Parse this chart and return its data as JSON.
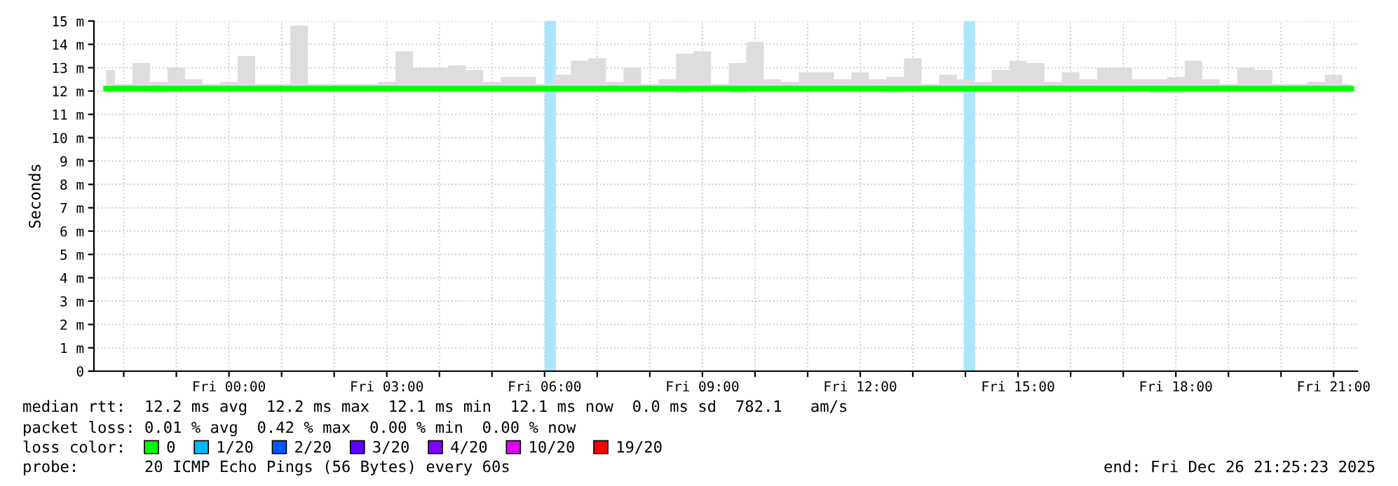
{
  "chart_data": {
    "type": "step",
    "ylabel": "Seconds",
    "legend_title": "loss color:",
    "legend": "bottom",
    "grid": true,
    "xlim": [
      "2025-12-25T21:26",
      "2025-12-26T21:27"
    ],
    "xticks": [
      {
        "value": "2025-12-25T22:00",
        "label": null
      },
      {
        "value": "2025-12-25T23:00",
        "label": null
      },
      {
        "value": "2025-12-26T00:00",
        "label": "Fri 00:00"
      },
      {
        "value": "2025-12-26T01:00",
        "label": null
      },
      {
        "value": "2025-12-26T02:00",
        "label": null
      },
      {
        "value": "2025-12-26T03:00",
        "label": "Fri 03:00"
      },
      {
        "value": "2025-12-26T04:00",
        "label": null
      },
      {
        "value": "2025-12-26T05:00",
        "label": null
      },
      {
        "value": "2025-12-26T06:00",
        "label": "Fri 06:00"
      },
      {
        "value": "2025-12-26T07:00",
        "label": null
      },
      {
        "value": "2025-12-26T08:00",
        "label": null
      },
      {
        "value": "2025-12-26T09:00",
        "label": "Fri 09:00"
      },
      {
        "value": "2025-12-26T10:00",
        "label": null
      },
      {
        "value": "2025-12-26T11:00",
        "label": null
      },
      {
        "value": "2025-12-26T12:00",
        "label": "Fri 12:00"
      },
      {
        "value": "2025-12-26T13:00",
        "label": null
      },
      {
        "value": "2025-12-26T14:00",
        "label": null
      },
      {
        "value": "2025-12-26T15:00",
        "label": "Fri 15:00"
      },
      {
        "value": "2025-12-26T16:00",
        "label": null
      },
      {
        "value": "2025-12-26T17:00",
        "label": null
      },
      {
        "value": "2025-12-26T18:00",
        "label": "Fri 18:00"
      },
      {
        "value": "2025-12-26T19:00",
        "label": null
      },
      {
        "value": "2025-12-26T20:00",
        "label": null
      },
      {
        "value": "2025-12-26T21:00",
        "label": "Fri 21:00"
      }
    ],
    "ylim": [
      0,
      15
    ],
    "yticks": [
      0,
      {
        "value": 1,
        "label": "1 m"
      },
      {
        "value": 2,
        "label": "2 m"
      },
      {
        "value": 3,
        "label": "3 m"
      },
      {
        "value": 4,
        "label": "4 m"
      },
      {
        "value": 5,
        "label": "5 m"
      },
      {
        "value": 6,
        "label": "6 m"
      },
      {
        "value": 7,
        "label": "7 m"
      },
      {
        "value": 8,
        "label": "8 m"
      },
      {
        "value": 9,
        "label": "9 m"
      },
      {
        "value": 10,
        "label": "10 m"
      },
      {
        "value": 11,
        "label": "11 m"
      },
      {
        "value": 12,
        "label": "12 m"
      },
      {
        "value": 13,
        "label": "13 m"
      },
      {
        "value": 14,
        "label": "14 m"
      },
      {
        "value": 15,
        "label": "15 m"
      }
    ],
    "x": [
      "2025-12-25T21:40",
      "2025-12-25T22:00",
      "2025-12-25T22:20",
      "2025-12-25T22:40",
      "2025-12-25T23:00",
      "2025-12-25T23:20",
      "2025-12-25T23:40",
      "2025-12-26T00:00",
      "2025-12-26T00:20",
      "2025-12-26T00:40",
      "2025-12-26T01:00",
      "2025-12-26T01:20",
      "2025-12-26T01:40",
      "2025-12-26T02:00",
      "2025-12-26T02:20",
      "2025-12-26T02:40",
      "2025-12-26T03:00",
      "2025-12-26T03:20",
      "2025-12-26T03:40",
      "2025-12-26T04:00",
      "2025-12-26T04:20",
      "2025-12-26T04:40",
      "2025-12-26T05:00",
      "2025-12-26T05:20",
      "2025-12-26T05:40",
      "2025-12-26T06:00",
      "2025-12-26T06:20",
      "2025-12-26T06:40",
      "2025-12-26T07:00",
      "2025-12-26T07:20",
      "2025-12-26T07:40",
      "2025-12-26T08:00",
      "2025-12-26T08:20",
      "2025-12-26T08:40",
      "2025-12-26T09:00",
      "2025-12-26T09:20",
      "2025-12-26T09:40",
      "2025-12-26T10:00",
      "2025-12-26T10:20",
      "2025-12-26T10:40",
      "2025-12-26T11:00",
      "2025-12-26T11:20",
      "2025-12-26T11:40",
      "2025-12-26T12:00",
      "2025-12-26T12:20",
      "2025-12-26T12:40",
      "2025-12-26T13:00",
      "2025-12-26T13:20",
      "2025-12-26T13:40",
      "2025-12-26T14:00",
      "2025-12-26T14:20",
      "2025-12-26T14:40",
      "2025-12-26T15:00",
      "2025-12-26T15:20",
      "2025-12-26T15:40",
      "2025-12-26T16:00",
      "2025-12-26T16:20",
      "2025-12-26T16:40",
      "2025-12-26T17:00",
      "2025-12-26T17:20",
      "2025-12-26T17:40",
      "2025-12-26T18:00",
      "2025-12-26T18:20",
      "2025-12-26T18:40",
      "2025-12-26T19:00",
      "2025-12-26T19:20",
      "2025-12-26T19:40",
      "2025-12-26T20:00",
      "2025-12-26T20:20",
      "2025-12-26T20:40",
      "2025-12-26T21:00",
      "2025-12-26T21:20"
    ],
    "series": [
      {
        "name": "0",
        "color": "#00ff00",
        "values": [
          12.1,
          12.1,
          12.1,
          12.1,
          12.1,
          12.1,
          12.1,
          12.1,
          12.1,
          12.1,
          12.1,
          12.1,
          12.1,
          12.1,
          12.1,
          12.1,
          12.1,
          12.1,
          12.1,
          12.1,
          12.1,
          12.1,
          12.1,
          12.1,
          12.1,
          12.1,
          12.1,
          12.1,
          12.1,
          12.1,
          12.1,
          12.1,
          12.1,
          12.1,
          12.1,
          12.1,
          12.1,
          12.1,
          12.1,
          12.1,
          12.1,
          12.1,
          12.1,
          12.1,
          12.1,
          12.1,
          12.1,
          12.1,
          12.1,
          12.1,
          12.1,
          12.1,
          12.1,
          12.1,
          12.1,
          12.1,
          12.1,
          12.1,
          12.1,
          12.1,
          12.1,
          12.1,
          12.1,
          12.1,
          12.1,
          12.1,
          12.1,
          12.1,
          12.1,
          12.1,
          12.1,
          12.1
        ],
        "lower": [
          12.0,
          12.0,
          12.0,
          11.9,
          12.0,
          12.0,
          12.0,
          12.0,
          12.0,
          12.0,
          12.0,
          12.0,
          12.0,
          12.0,
          12.0,
          12.0,
          12.0,
          12.0,
          12.0,
          12.0,
          12.0,
          12.0,
          12.0,
          12.0,
          12.0,
          12.0,
          12.0,
          12.0,
          12.0,
          12.0,
          12.0,
          12.0,
          12.0,
          11.9,
          12.0,
          12.0,
          11.9,
          12.0,
          12.0,
          12.0,
          12.0,
          12.0,
          12.0,
          12.0,
          12.0,
          11.9,
          12.0,
          12.0,
          12.0,
          12.0,
          12.0,
          12.0,
          12.0,
          12.0,
          12.0,
          12.0,
          12.0,
          12.0,
          12.0,
          12.0,
          11.9,
          11.9,
          12.0,
          12.0,
          12.0,
          12.0,
          12.0,
          12.0,
          12.0,
          12.0,
          12.0,
          12.0
        ],
        "upper": [
          12.9,
          12.3,
          13.2,
          12.4,
          13.0,
          12.5,
          12.3,
          12.4,
          13.5,
          12.3,
          12.3,
          14.8,
          12.3,
          12.3,
          12.3,
          12.3,
          12.4,
          13.7,
          13.0,
          13.0,
          13.1,
          12.9,
          12.4,
          12.6,
          12.6,
          12.3,
          12.7,
          13.3,
          13.4,
          12.4,
          13.0,
          12.3,
          12.5,
          13.6,
          13.7,
          12.3,
          13.2,
          14.1,
          12.5,
          12.4,
          12.8,
          12.8,
          12.5,
          12.8,
          12.5,
          12.6,
          13.4,
          12.3,
          12.7,
          12.5,
          12.4,
          12.9,
          13.3,
          13.2,
          12.4,
          12.8,
          12.5,
          13.0,
          13.0,
          12.5,
          12.5,
          12.6,
          13.3,
          12.5,
          12.3,
          13.0,
          12.9,
          12.3,
          12.3,
          12.4,
          12.7,
          12.3
        ]
      },
      {
        "name": "1/20",
        "color": "#00b8ff",
        "values": [
          null,
          null,
          null,
          null,
          null,
          null,
          null,
          null,
          null,
          null,
          null,
          null,
          null,
          null,
          null,
          null,
          null,
          null,
          null,
          null,
          null,
          null,
          null,
          null,
          null,
          null,
          null,
          null,
          null,
          null,
          null,
          null,
          null,
          null,
          null,
          null,
          null,
          null,
          null,
          null,
          null,
          null,
          null,
          null,
          null,
          null,
          null,
          null,
          null,
          null,
          null,
          null,
          null,
          null,
          null,
          null,
          null,
          null,
          null,
          null,
          null,
          null,
          null,
          null,
          null,
          null,
          null,
          null,
          null,
          null,
          null,
          null
        ]
      },
      {
        "name": "2/20",
        "color": "#0059ff",
        "values": [
          null,
          null,
          null,
          null,
          null,
          null,
          null,
          null,
          null,
          null,
          null,
          null,
          null,
          null,
          null,
          null,
          null,
          null,
          null,
          null,
          null,
          null,
          null,
          null,
          null,
          null,
          null,
          null,
          null,
          null,
          null,
          null,
          null,
          null,
          null,
          null,
          null,
          null,
          null,
          null,
          null,
          null,
          null,
          null,
          null,
          null,
          null,
          null,
          null,
          null,
          null,
          null,
          null,
          null,
          null,
          null,
          null,
          null,
          null,
          null,
          null,
          null,
          null,
          null,
          null,
          null,
          null,
          null,
          null,
          null,
          null,
          null
        ]
      },
      {
        "name": "3/20",
        "color": "#5e00ff",
        "values": [
          null,
          null,
          null,
          null,
          null,
          null,
          null,
          null,
          null,
          null,
          null,
          null,
          null,
          null,
          null,
          null,
          null,
          null,
          null,
          null,
          null,
          null,
          null,
          null,
          null,
          null,
          null,
          null,
          null,
          null,
          null,
          null,
          null,
          null,
          null,
          null,
          null,
          null,
          null,
          null,
          null,
          null,
          null,
          null,
          null,
          null,
          null,
          null,
          null,
          null,
          null,
          null,
          null,
          null,
          null,
          null,
          null,
          null,
          null,
          null,
          null,
          null,
          null,
          null,
          null,
          null,
          null,
          null,
          null,
          null,
          null,
          null
        ]
      },
      {
        "name": "4/20",
        "color": "#7e00ff",
        "values": [
          null,
          null,
          null,
          null,
          null,
          null,
          null,
          null,
          null,
          null,
          null,
          null,
          null,
          null,
          null,
          null,
          null,
          null,
          null,
          null,
          null,
          null,
          null,
          null,
          null,
          null,
          null,
          null,
          null,
          null,
          null,
          null,
          null,
          null,
          null,
          null,
          null,
          null,
          null,
          null,
          null,
          null,
          null,
          null,
          null,
          null,
          null,
          null,
          null,
          null,
          null,
          null,
          null,
          null,
          null,
          null,
          null,
          null,
          null,
          null,
          null,
          null,
          null,
          null,
          null,
          null,
          null,
          null,
          null,
          null,
          null,
          null
        ]
      },
      {
        "name": "10/20",
        "color": "#dd00ff",
        "values": [
          null,
          null,
          null,
          null,
          null,
          null,
          null,
          null,
          null,
          null,
          null,
          null,
          null,
          null,
          null,
          null,
          null,
          null,
          null,
          null,
          null,
          null,
          null,
          null,
          null,
          null,
          null,
          null,
          null,
          null,
          null,
          null,
          null,
          null,
          null,
          null,
          null,
          null,
          null,
          null,
          null,
          null,
          null,
          null,
          null,
          null,
          null,
          null,
          null,
          null,
          null,
          null,
          null,
          null,
          null,
          null,
          null,
          null,
          null,
          null,
          null,
          null,
          null,
          null,
          null,
          null,
          null,
          null,
          null,
          null,
          null,
          null
        ]
      },
      {
        "name": "19/20",
        "color": "#ff0000",
        "values": [
          null,
          null,
          null,
          null,
          null,
          null,
          null,
          null,
          null,
          null,
          null,
          null,
          null,
          null,
          null,
          null,
          null,
          null,
          null,
          null,
          null,
          null,
          null,
          null,
          null,
          null,
          null,
          null,
          null,
          null,
          null,
          null,
          null,
          null,
          null,
          null,
          null,
          null,
          null,
          null,
          null,
          null,
          null,
          null,
          null,
          null,
          null,
          null,
          null,
          null,
          null,
          null,
          null,
          null,
          null,
          null,
          null,
          null,
          null,
          null,
          null,
          null,
          null,
          null,
          null,
          null,
          null,
          null,
          null,
          null,
          null,
          null
        ]
      }
    ],
    "bands": [
      {
        "axis": "x",
        "from": "2025-12-26T06:00",
        "to": "2025-12-26T06:13",
        "color": "#aae6ff"
      },
      {
        "axis": "x",
        "from": "2025-12-26T13:58",
        "to": "2025-12-26T14:11",
        "color": "#aae6ff"
      }
    ],
    "annotations": [
      "median rtt:  12.2 ms avg  12.2 ms max  12.1 ms min  12.1 ms now  0.0 ms sd  782.1   am/s",
      "packet loss: 0.01 % avg  0.42 % max  0.00 % min  0.00 % now",
      "probe:       20 ICMP Echo Pings (56 Bytes) every 60s",
      "end: Fri Dec 26 21:25:23 2025"
    ]
  }
}
